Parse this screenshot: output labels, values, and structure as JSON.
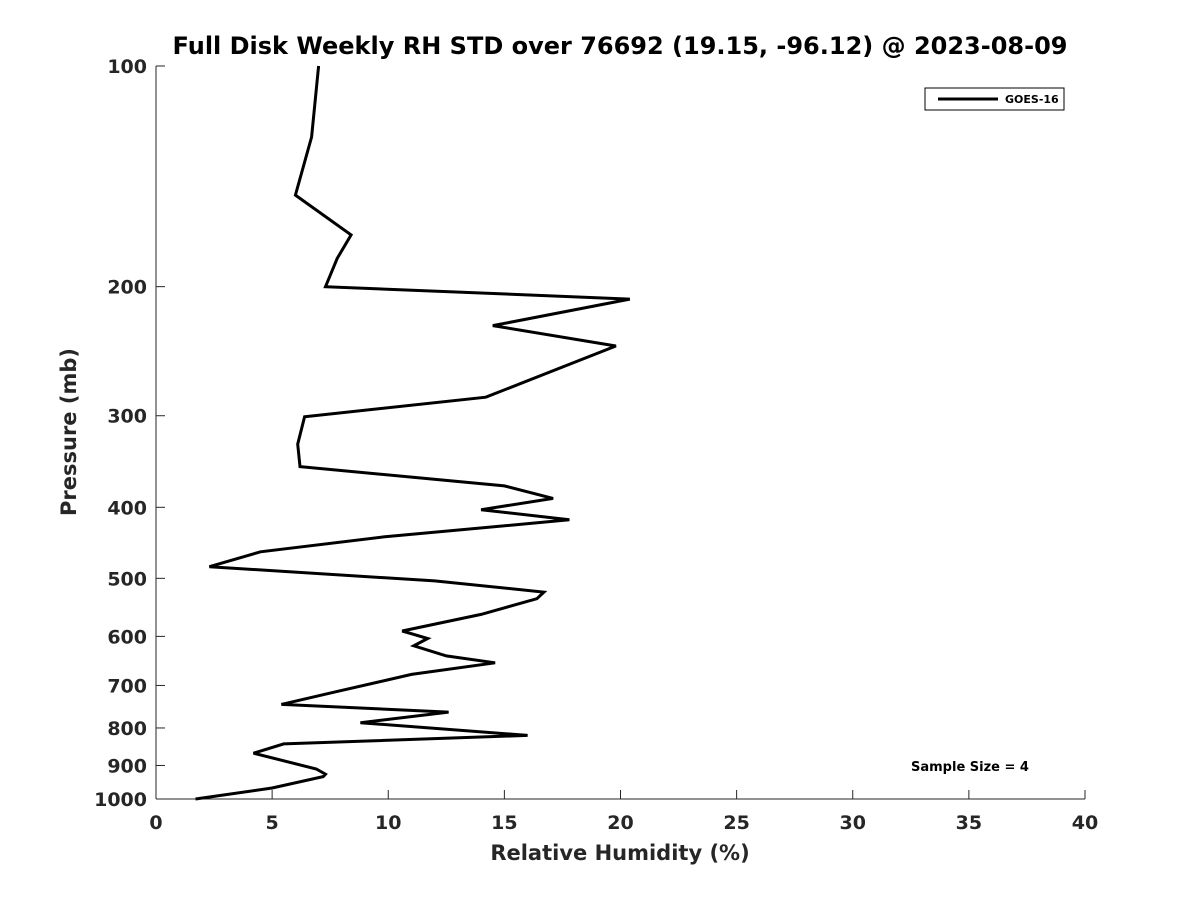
{
  "chart_data": {
    "type": "line",
    "title": "Full Disk Weekly RH STD over 76692 (19.15, -96.12) @ 2023-08-09",
    "xlabel": "Relative Humidity (%)",
    "ylabel": "Pressure (mb)",
    "xlim": [
      0,
      40
    ],
    "ylim": [
      1000,
      100
    ],
    "y_scale": "log",
    "x_ticks": [
      0,
      5,
      10,
      15,
      20,
      25,
      30,
      35,
      40
    ],
    "y_ticks": [
      100,
      200,
      300,
      400,
      500,
      600,
      700,
      800,
      900,
      1000
    ],
    "grid": false,
    "legend_position": "top-right",
    "annotation": "Sample Size = 4",
    "series": [
      {
        "name": "GOES-16",
        "color": "#000000",
        "points": [
          [
            7.0,
            100
          ],
          [
            6.7,
            125
          ],
          [
            6.0,
            150
          ],
          [
            8.4,
            170
          ],
          [
            7.8,
            183
          ],
          [
            7.3,
            200
          ],
          [
            20.4,
            208
          ],
          [
            14.5,
            226
          ],
          [
            19.8,
            241
          ],
          [
            14.2,
            283
          ],
          [
            6.4,
            301
          ],
          [
            6.1,
            328
          ],
          [
            6.2,
            352
          ],
          [
            15.0,
            374
          ],
          [
            17.1,
            389
          ],
          [
            14.0,
            403
          ],
          [
            17.8,
            416
          ],
          [
            9.8,
            439
          ],
          [
            4.5,
            460
          ],
          [
            2.3,
            482
          ],
          [
            12.0,
            504
          ],
          [
            16.7,
            522
          ],
          [
            16.4,
            533
          ],
          [
            14.0,
            560
          ],
          [
            10.6,
            590
          ],
          [
            11.7,
            604
          ],
          [
            11.1,
            618
          ],
          [
            12.5,
            638
          ],
          [
            14.6,
            652
          ],
          [
            11.0,
            676
          ],
          [
            7.5,
            717
          ],
          [
            5.4,
            743
          ],
          [
            12.6,
            761
          ],
          [
            8.8,
            787
          ],
          [
            16.0,
            819
          ],
          [
            5.5,
            841
          ],
          [
            4.2,
            866
          ],
          [
            6.9,
            910
          ],
          [
            7.3,
            925
          ],
          [
            7.2,
            932
          ],
          [
            5.0,
            966
          ],
          [
            1.7,
            1000
          ]
        ]
      }
    ]
  }
}
